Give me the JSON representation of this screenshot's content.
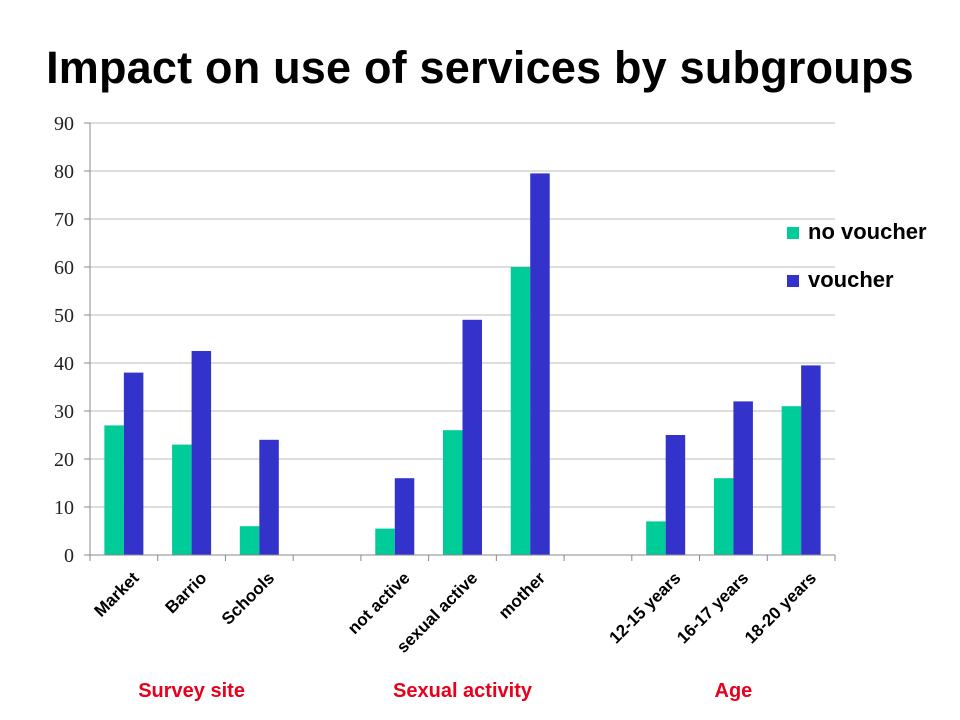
{
  "title": "Impact on use of services by subgroups",
  "colors": {
    "no_voucher": "#00cc99",
    "voucher": "#3333cc",
    "group_label": "#e8001c",
    "grid": "#bbbbbb"
  },
  "chart_data": {
    "type": "bar",
    "title": "Impact on use of services by subgroups",
    "xlabel": "",
    "ylabel": "",
    "ylim": [
      0,
      90
    ],
    "yticks": [
      0,
      10,
      20,
      30,
      40,
      50,
      60,
      70,
      80,
      90
    ],
    "grid": true,
    "legend_position": "right",
    "categories": [
      "Market",
      "Barrio",
      "Schools",
      "",
      "not active",
      "sexual active",
      "mother",
      "",
      "12-15 years",
      "16-17 years",
      "18-20 years"
    ],
    "series": [
      {
        "name": "no voucher",
        "values": [
          27,
          23,
          6,
          null,
          5.5,
          26,
          60,
          null,
          7,
          16,
          31
        ]
      },
      {
        "name": "voucher",
        "values": [
          38,
          42.5,
          24,
          null,
          16,
          49,
          79.5,
          null,
          25,
          32,
          39.5
        ]
      }
    ],
    "groups": [
      {
        "label": "Survey site",
        "categories": [
          "Market",
          "Barrio",
          "Schools"
        ]
      },
      {
        "label": "Sexual activity",
        "categories": [
          "not active",
          "sexual active",
          "mother"
        ]
      },
      {
        "label": "Age",
        "categories": [
          "12-15 years",
          "16-17 years",
          "18-20 years"
        ]
      }
    ]
  }
}
